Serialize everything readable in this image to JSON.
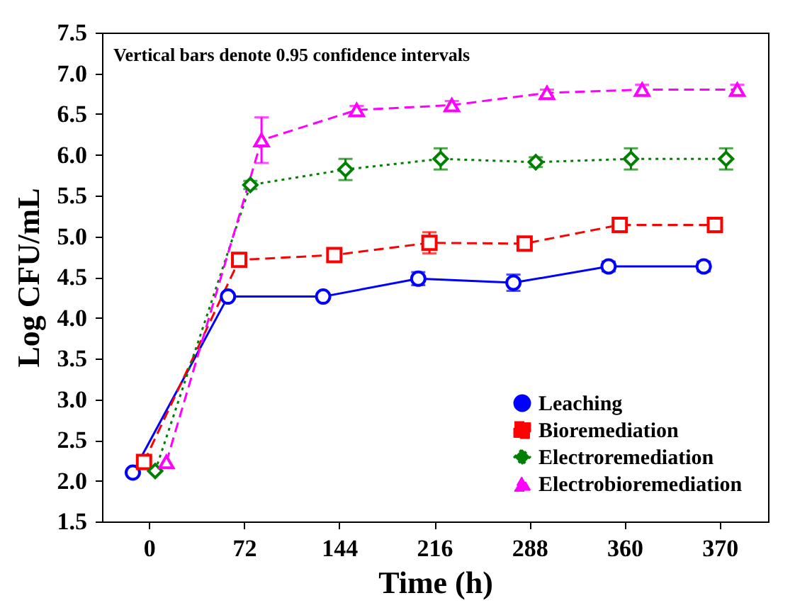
{
  "chart_data": {
    "type": "line",
    "xlabel": "Time (h)",
    "ylabel": "Log CFU/mL",
    "annotations": [
      "Vertical bars denote 0.95 confidence intervals"
    ],
    "categories": [
      "0",
      "72",
      "144",
      "216",
      "288",
      "360",
      "370"
    ],
    "ylim": [
      1.5,
      7.5
    ],
    "yticks": [
      1.5,
      {
        "value": 2,
        "label": "2.0"
      },
      2.5,
      {
        "value": 3,
        "label": "3.0"
      },
      3.5,
      {
        "value": 4,
        "label": "4.0"
      },
      4.5,
      {
        "value": 5,
        "label": "5.0"
      },
      5.5,
      {
        "value": 6,
        "label": "6.0"
      },
      6.5,
      {
        "value": 7,
        "label": "7.0"
      },
      7.5
    ],
    "grid": false,
    "legend": "bottom right",
    "series": [
      {
        "name": "Leaching",
        "color": "#0000ff",
        "marker": "circle",
        "line_style": "solid",
        "values": [
          2.1,
          4.26,
          4.26,
          4.48,
          4.43,
          4.63,
          4.63
        ],
        "errors": [
          null,
          null,
          null,
          0.08,
          0.1,
          0.06,
          0.06
        ]
      },
      {
        "name": "Bioremediation",
        "color": "#ff0000",
        "marker": "square",
        "line_style": "dashed",
        "values": [
          2.23,
          4.71,
          4.77,
          4.92,
          4.91,
          5.14,
          5.14
        ],
        "errors": [
          null,
          null,
          0.07,
          0.13,
          null,
          null,
          null
        ]
      },
      {
        "name": "Electroremediation",
        "color": "#008000",
        "marker": "diamond",
        "line_style": "dotted",
        "values": [
          2.12,
          5.63,
          5.82,
          5.95,
          5.91,
          5.95,
          5.95
        ],
        "errors": [
          null,
          0.05,
          0.13,
          0.13,
          0.06,
          0.13,
          0.13
        ]
      },
      {
        "name": "Electrobioremediation",
        "color": "#ff00ff",
        "marker": "triangle",
        "line_style": "dashed",
        "values": [
          2.23,
          6.18,
          6.55,
          6.61,
          6.76,
          6.8,
          6.8
        ],
        "errors": [
          null,
          0.28,
          0.05,
          0.05,
          0.04,
          0.06,
          0.06
        ]
      }
    ]
  }
}
